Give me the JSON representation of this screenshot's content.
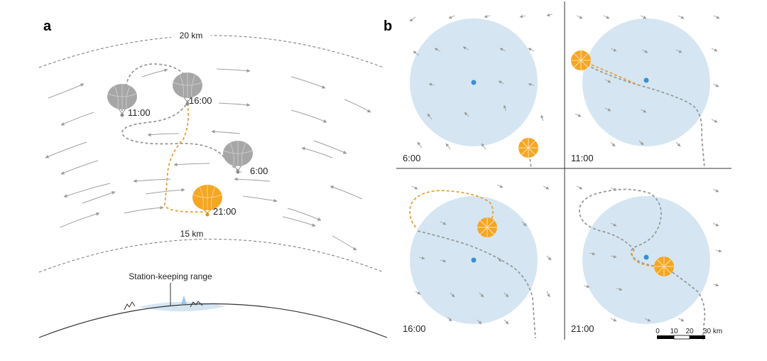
{
  "panel_a": {
    "letter": "a",
    "altitude_top": "20 km",
    "altitude_bottom": "15 km",
    "station_label": "Station-keeping range",
    "balloons": [
      {
        "time": "11:00",
        "color": "gray"
      },
      {
        "time": "16:00",
        "color": "gray"
      },
      {
        "time": "6:00",
        "color": "gray"
      },
      {
        "time": "21:00",
        "color": "orange"
      }
    ]
  },
  "panel_b": {
    "letter": "b",
    "frames": [
      {
        "time": "6:00"
      },
      {
        "time": "11:00"
      },
      {
        "time": "16:00"
      },
      {
        "time": "21:00"
      }
    ],
    "scale_ticks": [
      "0",
      "10",
      "20",
      "30 km"
    ]
  },
  "colors": {
    "balloon_orange": "#f5a623",
    "balloon_gray": "#a6a6a6",
    "range_blue": "#d5e6f2",
    "station_dot": "#3b8fd0",
    "path_gray": "#9a9a9a",
    "path_orange": "#e8a040"
  }
}
